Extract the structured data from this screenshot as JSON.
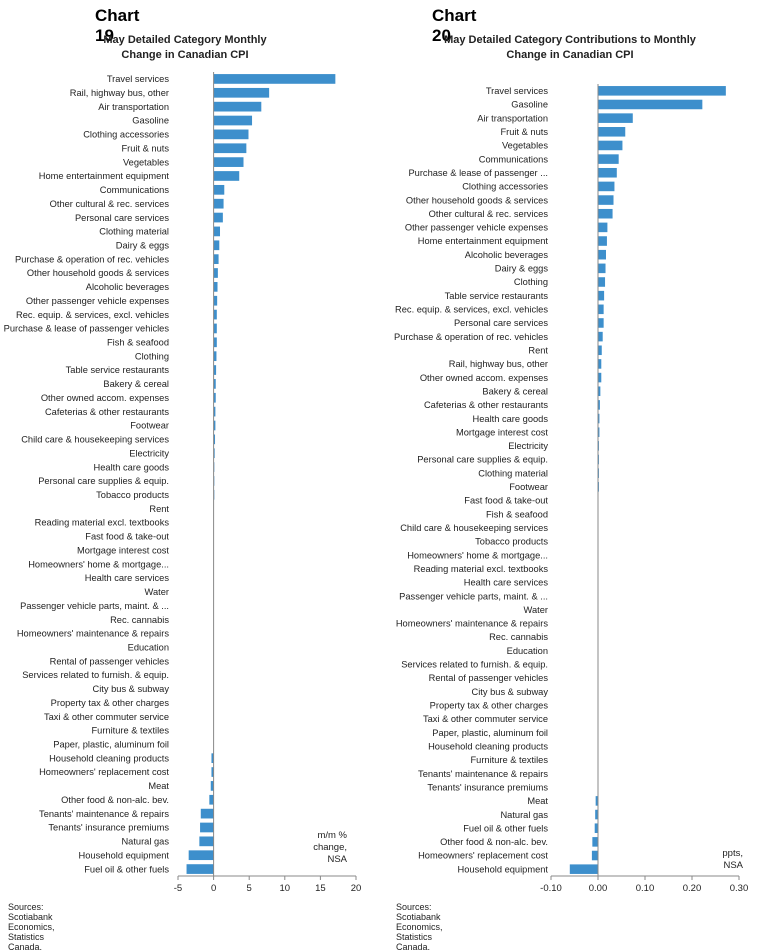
{
  "charts": [
    {
      "heading": "Chart 19",
      "title_line1": "May Detailed Category Monthly",
      "title_line2": "Change in Canadian CPI",
      "note_lines": [
        "m/m %",
        "change,",
        "NSA"
      ],
      "source": "Sources: Scotiabank Economics, Statistics Canada."
    },
    {
      "heading": "Chart 20",
      "title_line1": "May Detailed Category Contributions to Monthly",
      "title_line2": "Change in Canadian CPI",
      "note_lines": [
        "ppts,",
        "NSA"
      ],
      "source": "Sources: Scotiabank Economics, Statistics Canada."
    }
  ],
  "chart_data": [
    {
      "type": "bar",
      "orientation": "horizontal",
      "title": "May Detailed Category Monthly Change in Canadian CPI",
      "xlabel": "m/m % change, NSA",
      "xlim": [
        -5,
        20
      ],
      "xticks": [
        -5,
        0,
        5,
        10,
        15,
        20
      ],
      "tick_labels": [
        "-5",
        "0",
        "5",
        "10",
        "15",
        "20"
      ],
      "bar_color": "#3d8fcc",
      "categories": [
        "Travel services",
        "Rail, highway bus, other",
        "Air transportation",
        "Gasoline",
        "Clothing accessories",
        "Fruit & nuts",
        "Vegetables",
        "Home entertainment equipment",
        "Communications",
        "Other cultural & rec. services",
        "Personal care services",
        "Clothing material",
        "Dairy & eggs",
        "Purchase & operation of rec. vehicles",
        "Other household goods & services",
        "Alcoholic beverages",
        "Other passenger vehicle expenses",
        "Rec. equip. & services, excl. vehicles",
        "Purchase & lease of passenger vehicles",
        "Fish & seafood",
        "Clothing",
        "Table service restaurants",
        "Bakery & cereal",
        "Other owned accom. expenses",
        "Cafeterias & other restaurants",
        "Footwear",
        "Child care & housekeeping services",
        "Electricity",
        "Health care goods",
        "Personal care supplies & equip.",
        "Tobacco products",
        "Rent",
        "Reading material excl. textbooks",
        "Fast food & take-out",
        "Mortgage interest cost",
        "Homeowners' home & mortgage...",
        "Health care services",
        "Water",
        "Passenger vehicle parts, maint. & ...",
        "Rec. cannabis",
        "Homeowners' maintenance & repairs",
        "Education",
        "Rental of passenger vehicles",
        "Services related to furnish. & equip.",
        "City bus & subway",
        "Property tax & other charges",
        "Taxi & other commuter service",
        "Furniture & textiles",
        "Paper, plastic, aluminum foil",
        "Household cleaning products",
        "Homeowners' replacement cost",
        "Meat",
        "Other food & non-alc. bev.",
        "Tenants' maintenance & repairs",
        "Tenants' insurance premiums",
        "Natural gas",
        "Household equipment",
        "Fuel oil & other fuels"
      ],
      "values": [
        17.1,
        7.8,
        6.7,
        5.4,
        4.9,
        4.6,
        4.2,
        3.6,
        1.5,
        1.4,
        1.3,
        0.9,
        0.8,
        0.7,
        0.6,
        0.55,
        0.5,
        0.45,
        0.45,
        0.45,
        0.4,
        0.35,
        0.3,
        0.3,
        0.25,
        0.25,
        0.2,
        0.15,
        0.1,
        0.1,
        0.1,
        0.05,
        0.0,
        0.0,
        0.0,
        0.0,
        0.0,
        0.0,
        0.0,
        0.0,
        0.0,
        0.0,
        0.0,
        0.0,
        0.0,
        0.0,
        0.0,
        0.0,
        0.0,
        -0.3,
        -0.3,
        -0.4,
        -0.6,
        -1.8,
        -1.9,
        -2.0,
        -3.5,
        -3.8
      ]
    },
    {
      "type": "bar",
      "orientation": "horizontal",
      "title": "May Detailed Category Contributions to Monthly Change in Canadian CPI",
      "xlabel": "ppts, NSA",
      "xlim": [
        -0.1,
        0.3
      ],
      "xticks": [
        -0.1,
        0.0,
        0.1,
        0.2,
        0.3
      ],
      "tick_labels": [
        "-0.10",
        "0.00",
        "0.10",
        "0.20",
        "0.30"
      ],
      "bar_color": "#3d8fcc",
      "categories": [
        "Travel services",
        "Gasoline",
        "Air transportation",
        "Fruit & nuts",
        "Vegetables",
        "Communications",
        "Purchase & lease of passenger ...",
        "Clothing accessories",
        "Other household goods & services",
        "Other cultural & rec. services",
        "Other passenger vehicle expenses",
        "Home entertainment equipment",
        "Alcoholic beverages",
        "Dairy & eggs",
        "Clothing",
        "Table service restaurants",
        "Rec. equip. & services, excl. vehicles",
        "Personal care services",
        "Purchase & operation of rec. vehicles",
        "Rent",
        "Rail, highway bus, other",
        "Other owned accom. expenses",
        "Bakery & cereal",
        "Cafeterias & other restaurants",
        "Health care goods",
        "Mortgage interest cost",
        "Electricity",
        "Personal care supplies & equip.",
        "Clothing material",
        "Footwear",
        "Fast food & take-out",
        "Fish & seafood",
        "Child care & housekeeping services",
        "Tobacco products",
        "Homeowners' home & mortgage...",
        "Reading material excl. textbooks",
        "Health care services",
        "Passenger vehicle parts, maint. & ...",
        "Water",
        "Homeowners' maintenance & repairs",
        "Rec. cannabis",
        "Education",
        "Services related to furnish. & equip.",
        "Rental of passenger vehicles",
        "City bus & subway",
        "Property tax & other charges",
        "Taxi & other commuter service",
        "Paper, plastic, aluminum foil",
        "Household cleaning products",
        "Furniture & textiles",
        "Tenants' maintenance & repairs",
        "Tenants' insurance premiums",
        "Meat",
        "Natural gas",
        "Fuel oil & other fuels",
        "Other food & non-alc. bev.",
        "Homeowners' replacement cost",
        "Household equipment"
      ],
      "values": [
        0.272,
        0.222,
        0.074,
        0.058,
        0.052,
        0.044,
        0.04,
        0.035,
        0.033,
        0.031,
        0.02,
        0.019,
        0.017,
        0.016,
        0.015,
        0.013,
        0.012,
        0.012,
        0.01,
        0.008,
        0.007,
        0.007,
        0.005,
        0.004,
        0.003,
        0.003,
        0.002,
        0.002,
        0.002,
        0.002,
        0.001,
        0.001,
        0.001,
        0.001,
        0.0,
        0.0,
        0.0,
        0.0,
        0.0,
        0.0,
        0.0,
        0.0,
        0.0,
        0.0,
        0.0,
        0.0,
        0.0,
        0.0,
        0.0,
        0.0,
        0.0,
        0.0,
        -0.005,
        -0.006,
        -0.007,
        -0.012,
        -0.013,
        -0.06
      ]
    }
  ]
}
